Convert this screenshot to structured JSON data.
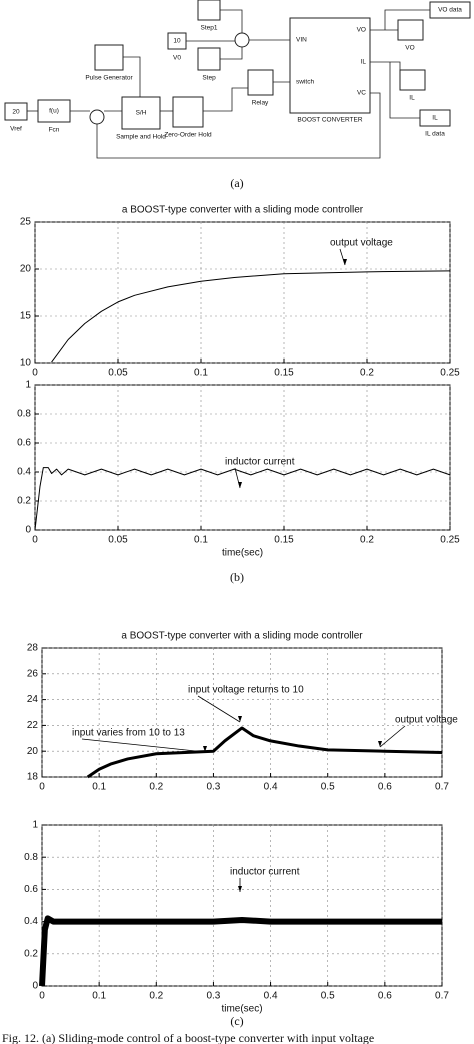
{
  "diagram": {
    "blocks": [
      "20",
      "Vref",
      "f(u)",
      "Fcn",
      "Pulse Generator",
      "S/H",
      "Sample and Hold",
      "Zero-Order Hold",
      "Relay",
      "10",
      "V0",
      "Step1",
      "Step",
      "VIN",
      "switch",
      "VO",
      "IL",
      "VC",
      "BOOST CONVERTER",
      "VO",
      "VO data",
      "IL",
      "IL",
      "IL data"
    ]
  },
  "panel_labels": [
    "(a)",
    "(b)",
    "(c)"
  ],
  "caption": "Fig. 12.    (a) Sliding-mode control of a boost-type converter with input voltage",
  "chart_data": [
    {
      "type": "line",
      "title": "a BOOST-type converter with a sliding mode controller",
      "x": [
        0.01,
        0.02,
        0.03,
        0.04,
        0.05,
        0.06,
        0.08,
        0.1,
        0.12,
        0.15,
        0.2,
        0.25
      ],
      "series": [
        {
          "name": "output voltage",
          "color": "#000000",
          "values": [
            10.1,
            12.5,
            14.2,
            15.5,
            16.5,
            17.2,
            18.1,
            18.7,
            19.1,
            19.5,
            19.7,
            19.8
          ]
        }
      ],
      "xlim": [
        0,
        0.25
      ],
      "xticks": [
        0,
        0.05,
        0.1,
        0.15,
        0.2,
        0.25
      ],
      "ylim": [
        10,
        25
      ],
      "yticks": [
        10,
        15,
        20,
        25
      ],
      "grid": true,
      "annotations": [
        "output voltage"
      ]
    },
    {
      "type": "line",
      "x_label": "time(sec)",
      "x": [
        0,
        0.003,
        0.005,
        0.008,
        0.01,
        0.013,
        0.016,
        0.02,
        0.03,
        0.04,
        0.05,
        0.06,
        0.07,
        0.08,
        0.09,
        0.1,
        0.11,
        0.12,
        0.13,
        0.14,
        0.15,
        0.16,
        0.17,
        0.18,
        0.19,
        0.2,
        0.21,
        0.22,
        0.23,
        0.24,
        0.25
      ],
      "series": [
        {
          "name": "inductor current",
          "color": "#000000",
          "values": [
            0,
            0.3,
            0.43,
            0.43,
            0.39,
            0.42,
            0.38,
            0.42,
            0.38,
            0.42,
            0.38,
            0.42,
            0.38,
            0.42,
            0.38,
            0.42,
            0.38,
            0.42,
            0.38,
            0.42,
            0.38,
            0.42,
            0.38,
            0.42,
            0.38,
            0.42,
            0.38,
            0.42,
            0.38,
            0.42,
            0.38
          ]
        }
      ],
      "xlim": [
        0,
        0.25
      ],
      "xticks": [
        0,
        0.05,
        0.1,
        0.15,
        0.2,
        0.25
      ],
      "ylim": [
        0,
        1
      ],
      "yticks": [
        0,
        0.2,
        0.4,
        0.6,
        0.8,
        1
      ],
      "grid": true,
      "annotations": [
        "inductor current"
      ]
    },
    {
      "type": "line",
      "title": "a BOOST-type converter with a sliding mode controller",
      "x": [
        0.08,
        0.1,
        0.12,
        0.15,
        0.2,
        0.25,
        0.3,
        0.32,
        0.35,
        0.37,
        0.4,
        0.45,
        0.5,
        0.6,
        0.7
      ],
      "series": [
        {
          "name": "output voltage",
          "color": "#000000",
          "values": [
            18,
            18.6,
            19.0,
            19.4,
            19.8,
            19.9,
            20,
            20.8,
            21.8,
            21.2,
            20.8,
            20.4,
            20.1,
            20,
            19.9
          ]
        }
      ],
      "xlim": [
        0,
        0.7
      ],
      "xticks": [
        0,
        0.1,
        0.2,
        0.3,
        0.4,
        0.5,
        0.6,
        0.7
      ],
      "ylim": [
        18,
        28
      ],
      "yticks": [
        18,
        20,
        22,
        24,
        26,
        28
      ],
      "grid": true,
      "annotations": [
        "input voltage returns to 10",
        "input varies from 10 to 13",
        "output voltage"
      ]
    },
    {
      "type": "line",
      "x_label": "time(sec)",
      "x": [
        0,
        0.005,
        0.01,
        0.02,
        0.05,
        0.1,
        0.2,
        0.3,
        0.35,
        0.4,
        0.5,
        0.6,
        0.7
      ],
      "series": [
        {
          "name": "inductor current",
          "color": "#000000",
          "values": [
            0,
            0.35,
            0.42,
            0.4,
            0.4,
            0.4,
            0.4,
            0.4,
            0.41,
            0.4,
            0.4,
            0.4,
            0.4
          ]
        }
      ],
      "xlim": [
        0,
        0.7
      ],
      "xticks": [
        0,
        0.1,
        0.2,
        0.3,
        0.4,
        0.5,
        0.6,
        0.7
      ],
      "ylim": [
        0,
        1
      ],
      "yticks": [
        0,
        0.2,
        0.4,
        0.6,
        0.8,
        1
      ],
      "grid": true,
      "annotations": [
        "inductor current"
      ]
    }
  ]
}
